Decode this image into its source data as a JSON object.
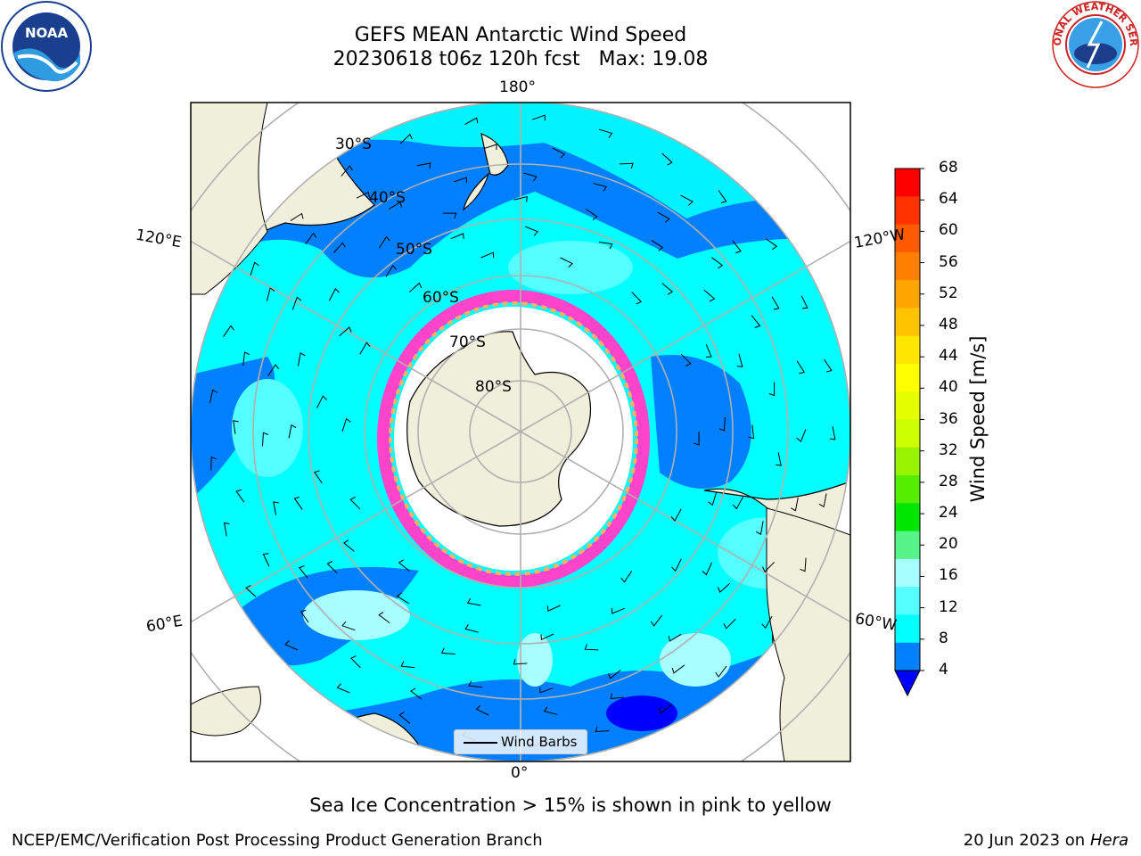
{
  "title": {
    "line1": "GEFS MEAN Antarctic Wind Speed",
    "line2": "20230618 t06z 120h fcst   Max: 19.08"
  },
  "logos": {
    "left": "noaa-logo",
    "right": "national-weather-service-logo",
    "left_text": "NOAA",
    "right_text": "NATIONAL WEATHER SERVICE"
  },
  "map": {
    "projection": "south-polar-stereographic",
    "longitude_labels": {
      "top": "180°",
      "upper_left": "120°E",
      "upper_right": "120°W",
      "lower_left": "60°E",
      "lower_right": "60°W",
      "bottom": "0°"
    },
    "latitude_labels": [
      "30°S",
      "40°S",
      "50°S",
      "60°S",
      "70°S",
      "80°S"
    ],
    "legend_label": "Wind Barbs",
    "sea_ice_note": "Sea Ice Concentration > 15% is shown in pink to yellow"
  },
  "colorbar": {
    "label": "Wind Speed [m/s]",
    "ticks": [
      "68",
      "64",
      "60",
      "56",
      "52",
      "48",
      "44",
      "40",
      "36",
      "32",
      "28",
      "24",
      "20",
      "16",
      "12",
      "8",
      "4"
    ],
    "colors": [
      "#ff0000",
      "#ff3300",
      "#ff5a00",
      "#ff8000",
      "#ffa500",
      "#ffc300",
      "#ffe600",
      "#ffff00",
      "#e6ff00",
      "#ccff00",
      "#99f200",
      "#55ee00",
      "#00e600",
      "#55f58a",
      "#a8ffff",
      "#55ffff",
      "#00ffff",
      "#0080ff"
    ],
    "extend_color": "#0000ff"
  },
  "footer": {
    "left": "NCEP/EMC/Verification Post Processing Product Generation Branch",
    "date": "20 Jun 2023 on",
    "host": "Hera"
  }
}
